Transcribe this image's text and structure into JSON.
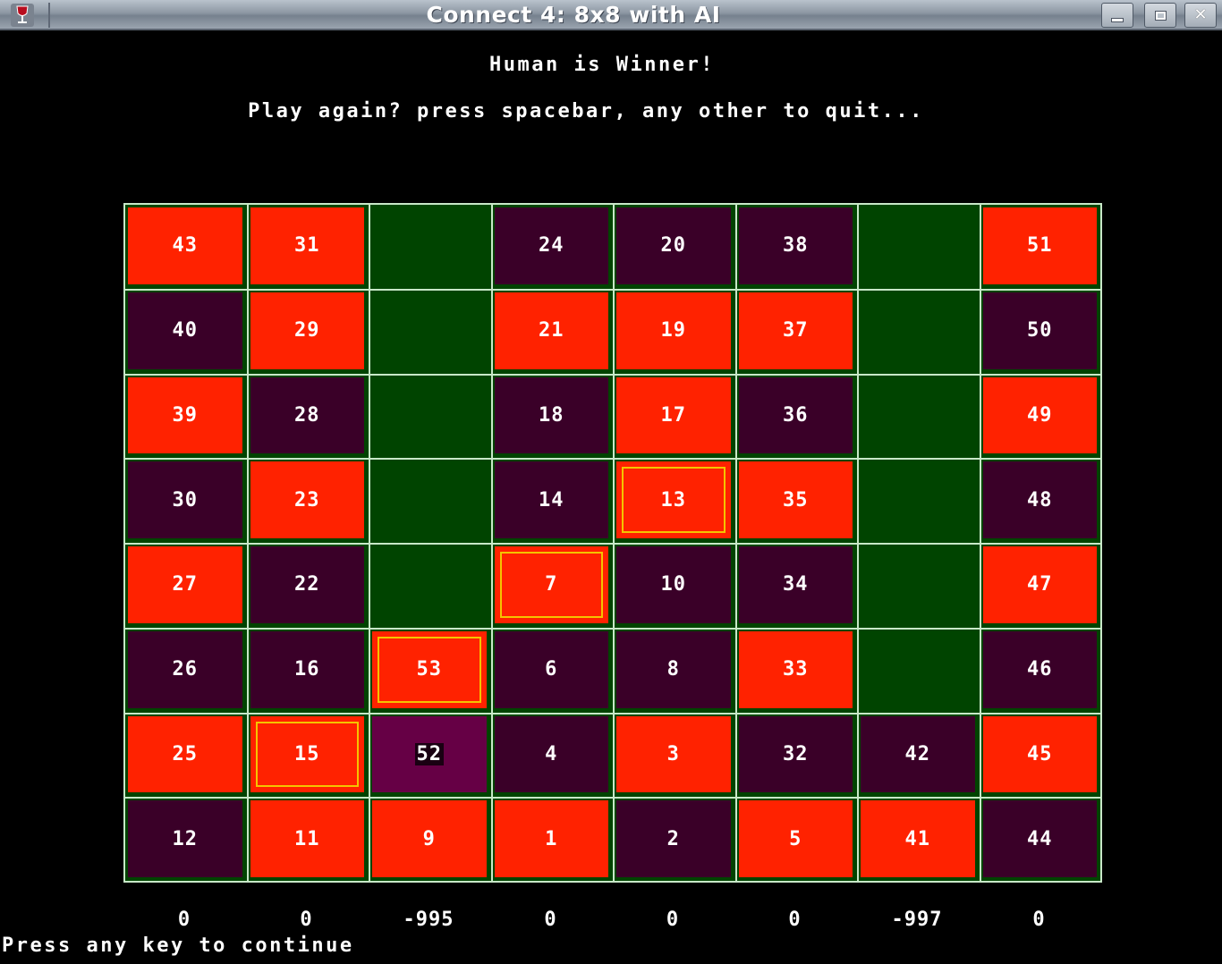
{
  "window": {
    "title": "Connect 4: 8x8 with AI",
    "icon": "wine-glass-icon",
    "controls": [
      "minimize",
      "maximize",
      "close"
    ]
  },
  "messages": {
    "winner": "Human is Winner!",
    "play_again": "Play again? press spacebar, any other to quit..."
  },
  "colors": {
    "background": "#000000",
    "board_green": "#004400",
    "red_piece": "#ff2200",
    "dark_piece": "#3a0028",
    "last_move": "#660045",
    "win_highlight": "#f4c400",
    "grid": "#c8e8c8"
  },
  "board": {
    "rows": [
      [
        {
          "n": "43",
          "c": "red"
        },
        {
          "n": "31",
          "c": "red"
        },
        {
          "n": "",
          "c": "empty"
        },
        {
          "n": "24",
          "c": "maroon"
        },
        {
          "n": "20",
          "c": "maroon"
        },
        {
          "n": "38",
          "c": "maroon"
        },
        {
          "n": "",
          "c": "empty"
        },
        {
          "n": "51",
          "c": "red"
        }
      ],
      [
        {
          "n": "40",
          "c": "maroon"
        },
        {
          "n": "29",
          "c": "red"
        },
        {
          "n": "",
          "c": "empty"
        },
        {
          "n": "21",
          "c": "red"
        },
        {
          "n": "19",
          "c": "red"
        },
        {
          "n": "37",
          "c": "red"
        },
        {
          "n": "",
          "c": "empty"
        },
        {
          "n": "50",
          "c": "maroon"
        }
      ],
      [
        {
          "n": "39",
          "c": "red"
        },
        {
          "n": "28",
          "c": "maroon"
        },
        {
          "n": "",
          "c": "empty"
        },
        {
          "n": "18",
          "c": "maroon"
        },
        {
          "n": "17",
          "c": "red"
        },
        {
          "n": "36",
          "c": "maroon"
        },
        {
          "n": "",
          "c": "empty"
        },
        {
          "n": "49",
          "c": "red"
        }
      ],
      [
        {
          "n": "30",
          "c": "maroon"
        },
        {
          "n": "23",
          "c": "red"
        },
        {
          "n": "",
          "c": "empty"
        },
        {
          "n": "14",
          "c": "maroon"
        },
        {
          "n": "13",
          "c": "red",
          "win": true
        },
        {
          "n": "35",
          "c": "red"
        },
        {
          "n": "",
          "c": "empty"
        },
        {
          "n": "48",
          "c": "maroon"
        }
      ],
      [
        {
          "n": "27",
          "c": "red"
        },
        {
          "n": "22",
          "c": "maroon"
        },
        {
          "n": "",
          "c": "empty"
        },
        {
          "n": "7",
          "c": "red",
          "win": true
        },
        {
          "n": "10",
          "c": "maroon"
        },
        {
          "n": "34",
          "c": "maroon"
        },
        {
          "n": "",
          "c": "empty"
        },
        {
          "n": "47",
          "c": "red"
        }
      ],
      [
        {
          "n": "26",
          "c": "maroon"
        },
        {
          "n": "16",
          "c": "maroon"
        },
        {
          "n": "53",
          "c": "red",
          "win": true
        },
        {
          "n": "6",
          "c": "maroon"
        },
        {
          "n": "8",
          "c": "maroon"
        },
        {
          "n": "33",
          "c": "red"
        },
        {
          "n": "",
          "c": "empty"
        },
        {
          "n": "46",
          "c": "maroon"
        }
      ],
      [
        {
          "n": "25",
          "c": "red"
        },
        {
          "n": "15",
          "c": "red",
          "win": true
        },
        {
          "n": "52",
          "c": "purple",
          "last": true
        },
        {
          "n": "4",
          "c": "maroon"
        },
        {
          "n": "3",
          "c": "red"
        },
        {
          "n": "32",
          "c": "maroon"
        },
        {
          "n": "42",
          "c": "maroon"
        },
        {
          "n": "45",
          "c": "red"
        }
      ],
      [
        {
          "n": "12",
          "c": "maroon"
        },
        {
          "n": "11",
          "c": "red"
        },
        {
          "n": "9",
          "c": "red"
        },
        {
          "n": "1",
          "c": "red"
        },
        {
          "n": "2",
          "c": "maroon"
        },
        {
          "n": "5",
          "c": "red"
        },
        {
          "n": "41",
          "c": "red"
        },
        {
          "n": "44",
          "c": "maroon"
        }
      ]
    ]
  },
  "column_scores": [
    "0",
    "0",
    "-995",
    "0",
    "0",
    "0",
    "-997",
    "0"
  ],
  "status": "Press any key to continue"
}
